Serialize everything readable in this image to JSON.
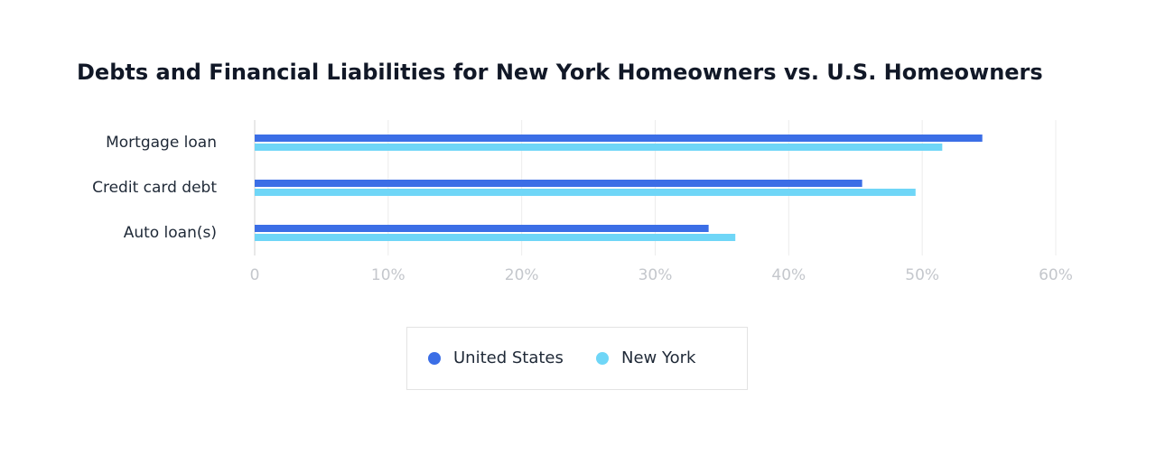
{
  "chart_data": {
    "type": "bar",
    "orientation": "horizontal",
    "title": "Debts and Financial Liabilities for New York Homeowners vs. U.S. Homeowners",
    "categories": [
      "Mortgage loan",
      "Credit card debt",
      "Auto loan(s)"
    ],
    "series": [
      {
        "name": "United States",
        "color": "#3b6ee6",
        "values": [
          54.5,
          45.5,
          34
        ]
      },
      {
        "name": "New York",
        "color": "#6fd6f7",
        "values": [
          51.5,
          49.5,
          36
        ]
      }
    ],
    "xlim": [
      0,
      60
    ],
    "xticks": [
      0,
      {
        "value": 10,
        "label": "10%"
      },
      {
        "value": 20,
        "label": "20%"
      },
      {
        "value": 30,
        "label": "30%"
      },
      {
        "value": 40,
        "label": "40%"
      },
      {
        "value": 50,
        "label": "50%"
      },
      {
        "value": 60,
        "label": "60%"
      }
    ],
    "grid": true
  }
}
